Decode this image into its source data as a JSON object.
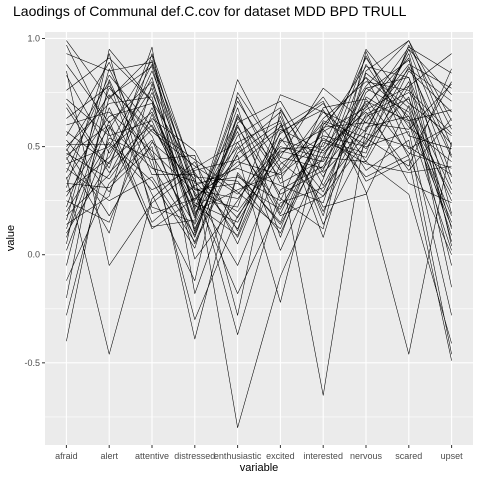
{
  "chart_data": {
    "type": "line",
    "title": "Laodings of Communal def.C.cov for dataset MDD BPD TRULL",
    "xlabel": "variable",
    "ylabel": "value",
    "categories": [
      "afraid",
      "alert",
      "attentive",
      "distressed",
      "enthusiastic",
      "excited",
      "interested",
      "nervous",
      "scared",
      "upset"
    ],
    "ylim": [
      -0.88,
      1.03
    ],
    "yticks": [
      -0.5,
      0.0,
      0.5,
      1.0
    ],
    "ytick_labels": [
      "-0.5",
      "0.0",
      "0.5",
      "1.0"
    ],
    "grid": true,
    "series": [
      {
        "values": [
          0.99,
          0.72,
          0.92,
          0.27,
          0.41,
          0.58,
          0.48,
          0.78,
          0.99,
          0.62
        ]
      },
      {
        "values": [
          0.93,
          0.85,
          0.89,
          0.22,
          0.63,
          0.39,
          0.66,
          0.57,
          0.95,
          0.46
        ]
      },
      {
        "values": [
          0.88,
          0.61,
          0.8,
          0.31,
          0.2,
          0.47,
          0.58,
          0.87,
          0.82,
          0.12
        ]
      },
      {
        "values": [
          0.83,
          0.47,
          0.77,
          0.12,
          0.55,
          0.68,
          0.32,
          0.69,
          0.91,
          0.04
        ]
      },
      {
        "values": [
          0.76,
          0.91,
          0.71,
          0.38,
          0.08,
          0.52,
          0.73,
          0.43,
          0.78,
          0.93
        ]
      },
      {
        "values": [
          0.72,
          0.55,
          0.62,
          0.18,
          0.73,
          0.33,
          0.44,
          0.95,
          0.7,
          0.55
        ]
      },
      {
        "values": [
          0.68,
          0.38,
          0.58,
          0.44,
          0.29,
          0.12,
          0.6,
          0.82,
          0.64,
          0.28
        ]
      },
      {
        "values": [
          0.63,
          0.78,
          0.55,
          0.05,
          0.47,
          0.61,
          0.2,
          0.63,
          0.88,
          0.77
        ]
      },
      {
        "values": [
          0.6,
          0.66,
          0.48,
          0.29,
          -0.05,
          0.42,
          0.55,
          0.5,
          0.57,
          -0.28
        ]
      },
      {
        "values": [
          0.57,
          0.42,
          0.85,
          0.33,
          0.36,
          0.25,
          0.68,
          0.72,
          0.47,
          0.4
        ]
      },
      {
        "values": [
          0.55,
          0.89,
          0.41,
          0.09,
          0.61,
          0.71,
          0.38,
          0.58,
          0.93,
          0.19
        ]
      },
      {
        "values": [
          0.53,
          0.29,
          0.68,
          0.24,
          0.15,
          0.49,
          0.5,
          0.91,
          0.62,
          0.67
        ]
      },
      {
        "values": [
          0.51,
          0.51,
          0.3,
          0.4,
          0.52,
          0.18,
          0.27,
          0.65,
          0.75,
          0.51
        ]
      },
      {
        "values": [
          0.5,
          0.7,
          0.73,
          -0.02,
          0.25,
          0.56,
          0.7,
          0.39,
          0.53,
          -0.46
        ]
      },
      {
        "values": [
          0.49,
          0.18,
          0.52,
          0.35,
          -0.37,
          0.3,
          0.41,
          0.77,
          0.82,
          0.33
        ]
      },
      {
        "values": [
          0.48,
          0.8,
          0.22,
          0.15,
          0.68,
          0.08,
          0.62,
          0.54,
          0.41,
          0.86
        ]
      },
      {
        "values": [
          0.47,
          0.35,
          0.63,
          0.48,
          0.11,
          0.64,
          0.18,
          0.84,
          0.68,
          0.09
        ]
      },
      {
        "values": [
          0.46,
          0.6,
          0.12,
          0.26,
          0.43,
          0.37,
          0.53,
          0.47,
          0.97,
          0.58
        ]
      },
      {
        "values": [
          0.45,
          0.1,
          0.79,
          0.21,
          0.57,
          0.02,
          0.46,
          0.7,
          0.33,
          0.24
        ]
      },
      {
        "values": [
          0.44,
          0.74,
          0.45,
          -0.3,
          0.18,
          0.45,
          0.77,
          0.61,
          0.86,
          0.71
        ]
      },
      {
        "values": [
          0.42,
          0.5,
          0.88,
          0.37,
          -0.8,
          -0.1,
          0.35,
          0.88,
          0.59,
          0.43
        ]
      },
      {
        "values": [
          0.4,
          0.25,
          0.36,
          0.06,
          0.49,
          0.66,
          0.14,
          0.52,
          0.73,
          -0.05
        ]
      },
      {
        "values": [
          0.38,
          0.83,
          0.59,
          0.3,
          0.33,
          0.21,
          0.58,
          0.36,
          0.46,
          0.8
        ]
      },
      {
        "values": [
          0.36,
          -0.46,
          0.26,
          0.43,
          0.05,
          0.54,
          0.29,
          0.75,
          0.9,
          0.36
        ]
      },
      {
        "values": [
          0.35,
          0.64,
          0.7,
          0.17,
          0.71,
          0.4,
          -0.65,
          0.59,
          0.64,
          0.15
        ]
      },
      {
        "values": [
          0.33,
          0.31,
          0.5,
          -0.39,
          0.38,
          0.14,
          0.49,
          0.66,
          0.39,
          0.63
        ]
      },
      {
        "values": [
          0.31,
          0.93,
          0.19,
          0.26,
          0.22,
          0.74,
          0.66,
          0.49,
          0.8,
          0.06
        ]
      },
      {
        "values": [
          0.29,
          0.45,
          0.82,
          0.1,
          0.59,
          0.28,
          0.39,
          0.92,
          0.55,
          0.49
        ]
      },
      {
        "values": [
          0.27,
          0.59,
          0.4,
          0.34,
          0.12,
          0.6,
          0.22,
          0.28,
          0.69,
          0.25
        ]
      },
      {
        "values": [
          0.25,
          0.15,
          0.65,
          0.19,
          0.46,
          -0.22,
          0.57,
          0.68,
          0.96,
          0.84
        ]
      },
      {
        "values": [
          0.22,
          0.77,
          0.57,
          0.41,
          0.28,
          0.5,
          0.45,
          0.43,
          0.28,
          -0.41
        ]
      },
      {
        "values": [
          0.2,
          0.52,
          0.34,
          0.03,
          0.64,
          0.35,
          0.63,
          0.8,
          0.76,
          0.56
        ]
      },
      {
        "values": [
          0.18,
          0.37,
          0.75,
          0.28,
          -0.18,
          0.24,
          0.31,
          0.56,
          0.5,
          0.37
        ]
      },
      {
        "values": [
          0.16,
          0.86,
          0.46,
          0.14,
          0.52,
          0.62,
          0.08,
          0.73,
          0.61,
          0.02
        ]
      },
      {
        "values": [
          0.14,
          0.27,
          0.93,
          0.36,
          0.34,
          0.1,
          0.52,
          0.45,
          0.85,
          0.66
        ]
      },
      {
        "values": [
          0.12,
          0.68,
          0.28,
          -0.12,
          0.75,
          0.45,
          0.4,
          0.64,
          0.72,
          0.3
        ]
      },
      {
        "values": [
          0.1,
          0.43,
          0.6,
          0.23,
          0.09,
          0.57,
          0.67,
          0.34,
          0.44,
          -0.49
        ]
      },
      {
        "values": [
          0.08,
          0.62,
          0.15,
          0.32,
          0.4,
          0.32,
          0.24,
          0.85,
          0.99,
          0.5
        ]
      },
      {
        "values": [
          0.05,
          0.95,
          0.71,
          0.11,
          0.6,
          0.19,
          0.59,
          0.61,
          0.58,
          0.79
        ]
      },
      {
        "values": [
          0.02,
          0.54,
          0.44,
          0.46,
          -0.28,
          0.67,
          0.36,
          0.77,
          0.66,
          0.18
        ]
      },
      {
        "values": [
          -0.05,
          0.73,
          0.87,
          0.2,
          0.3,
          0.38,
          0.61,
          0.51,
          0.87,
          0.45
        ]
      },
      {
        "values": [
          -0.12,
          0.33,
          0.53,
          0.08,
          0.65,
          0.26,
          0.12,
          0.94,
          0.49,
          0.6
        ]
      },
      {
        "values": [
          -0.2,
          0.81,
          0.37,
          0.37,
          0.17,
          0.53,
          0.47,
          0.67,
          0.78,
          -0.15
        ]
      },
      {
        "values": [
          -0.28,
          0.49,
          0.66,
          0.25,
          0.5,
          0.22,
          0.54,
          0.42,
          0.38,
          0.41
        ]
      },
      {
        "values": [
          -0.4,
          0.58,
          0.9,
          0.3,
          0.26,
          0.48,
          0.43,
          0.71,
          0.62,
          0.13
        ]
      },
      {
        "values": [
          0.85,
          -0.05,
          0.24,
          0.39,
          0.44,
          0.59,
          0.71,
          0.29,
          -0.46,
          0.52
        ]
      },
      {
        "values": [
          0.97,
          0.56,
          0.13,
          0.16,
          0.81,
          0.43,
          0.27,
          0.53,
          0.95,
          0.74
        ]
      },
      {
        "values": [
          0.7,
          0.4,
          0.96,
          -0.18,
          0.37,
          0.15,
          0.6,
          0.82,
          0.45,
          0.0
        ]
      }
    ]
  }
}
